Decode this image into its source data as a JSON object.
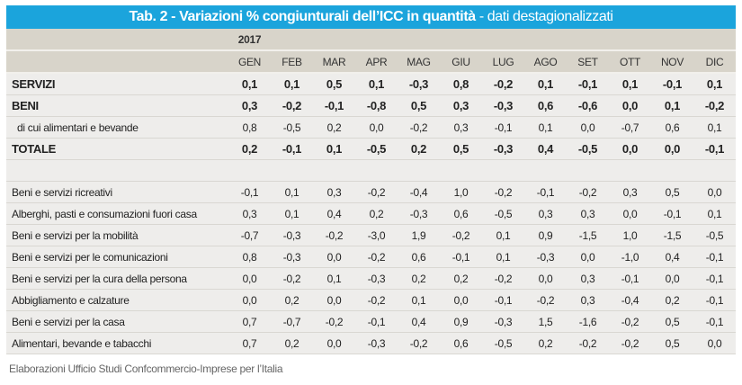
{
  "title": {
    "main": "Tab. 2 - Variazioni % congiunturali dell’ICC in quantità",
    "sub": " - dati destagionalizzati"
  },
  "year": "2017",
  "months": [
    "GEN",
    "FEB",
    "MAR",
    "APR",
    "MAG",
    "GIU",
    "LUG",
    "AGO",
    "SET",
    "OTT",
    "NOV",
    "DIC"
  ],
  "summary_rows": [
    {
      "label": "SERVIZI",
      "bold": true,
      "values": [
        "0,1",
        "0,1",
        "0,5",
        "0,1",
        "-0,3",
        "0,8",
        "-0,2",
        "0,1",
        "-0,1",
        "0,1",
        "-0,1",
        "0,1"
      ]
    },
    {
      "label": "BENI",
      "bold": true,
      "values": [
        "0,3",
        "-0,2",
        "-0,1",
        "-0,8",
        "0,5",
        "0,3",
        "-0,3",
        "0,6",
        "-0,6",
        "0,0",
        "0,1",
        "-0,2"
      ]
    },
    {
      "label": "di cui alimentari e bevande",
      "bold": false,
      "values": [
        "0,8",
        "-0,5",
        "0,2",
        "0,0",
        "-0,2",
        "0,3",
        "-0,1",
        "0,1",
        "0,0",
        "-0,7",
        "0,6",
        "0,1"
      ]
    },
    {
      "label": "TOTALE",
      "bold": true,
      "values": [
        "0,2",
        "-0,1",
        "0,1",
        "-0,5",
        "0,2",
        "0,5",
        "-0,3",
        "0,4",
        "-0,5",
        "0,0",
        "0,0",
        "-0,1"
      ]
    }
  ],
  "detail_rows": [
    {
      "label": "Beni e servizi ricreativi",
      "values": [
        "-0,1",
        "0,1",
        "0,3",
        "-0,2",
        "-0,4",
        "1,0",
        "-0,2",
        "-0,1",
        "-0,2",
        "0,3",
        "0,5",
        "0,0"
      ]
    },
    {
      "label": "Alberghi, pasti e consumazioni fuori casa",
      "values": [
        "0,3",
        "0,1",
        "0,4",
        "0,2",
        "-0,3",
        "0,6",
        "-0,5",
        "0,3",
        "0,3",
        "0,0",
        "-0,1",
        "0,1"
      ]
    },
    {
      "label": "Beni e servizi per la mobilità",
      "values": [
        "-0,7",
        "-0,3",
        "-0,2",
        "-3,0",
        "1,9",
        "-0,2",
        "0,1",
        "0,9",
        "-1,5",
        "1,0",
        "-1,5",
        "-0,5"
      ]
    },
    {
      "label": "Beni e servizi per le comunicazioni",
      "values": [
        "0,8",
        "-0,3",
        "0,0",
        "-0,2",
        "0,6",
        "-0,1",
        "0,1",
        "-0,3",
        "0,0",
        "-1,0",
        "0,4",
        "-0,1"
      ]
    },
    {
      "label": "Beni e servizi per la cura della persona",
      "values": [
        "0,0",
        "-0,2",
        "0,1",
        "-0,3",
        "0,2",
        "0,2",
        "-0,2",
        "0,0",
        "0,3",
        "-0,1",
        "0,0",
        "-0,1"
      ]
    },
    {
      "label": "Abbigliamento e calzature",
      "values": [
        "0,0",
        "0,2",
        "0,0",
        "-0,2",
        "0,1",
        "0,0",
        "-0,1",
        "-0,2",
        "0,3",
        "-0,4",
        "0,2",
        "-0,1"
      ]
    },
    {
      "label": "Beni e servizi per la casa",
      "values": [
        "0,7",
        "-0,7",
        "-0,2",
        "-0,1",
        "0,4",
        "0,9",
        "-0,3",
        "1,5",
        "-1,6",
        "-0,2",
        "0,5",
        "-0,1"
      ]
    },
    {
      "label": "Alimentari, bevande e tabacchi",
      "values": [
        "0,7",
        "0,2",
        "0,0",
        "-0,3",
        "-0,2",
        "0,6",
        "-0,5",
        "0,2",
        "-0,2",
        "-0,2",
        "0,5",
        "0,0"
      ]
    }
  ],
  "source_note": "Elaborazioni Ufficio Studi Confcommercio-Imprese per l’Italia",
  "colors": {
    "title_bg": "#1ba4dc",
    "header_bg": "#d8d4ca",
    "row_bg": "#eeedeb"
  }
}
